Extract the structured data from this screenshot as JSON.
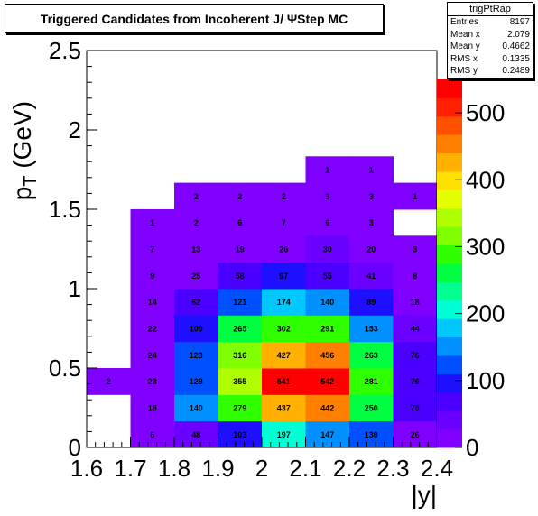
{
  "header": {
    "title": "Triggered Candidates from Incoherent J/    ΨStep MC"
  },
  "stats": {
    "name": "trigPtRap",
    "rows": [
      {
        "label": "Entries",
        "value": "8197"
      },
      {
        "label": "Mean x",
        "value": "2.079"
      },
      {
        "label": "Mean y",
        "value": "0.4662"
      },
      {
        "label": "RMS x",
        "value": "0.1335"
      },
      {
        "label": "RMS y",
        "value": "0.2489"
      }
    ]
  },
  "chart_data": {
    "type": "heatmap",
    "xlabel": "|y|",
    "ylabel": "p_T (GeV)",
    "xlim": [
      1.6,
      2.4
    ],
    "ylim": [
      0,
      2.5
    ],
    "x_bin_edges": [
      1.6,
      1.7,
      1.8,
      1.9,
      2.0,
      2.1,
      2.2,
      2.3,
      2.4
    ],
    "y_bin_width": 0.1667,
    "x_ticks": [
      "1.6",
      "1.7",
      "1.8",
      "1.9",
      "2",
      "2.1",
      "2.2",
      "2.3",
      "2.4"
    ],
    "y_ticks": [
      "0",
      "0.5",
      "1",
      "1.5",
      "2",
      "2.5"
    ],
    "z_ticks": [
      "0",
      "100",
      "200",
      "300",
      "400",
      "500"
    ],
    "zlim": [
      0,
      550
    ],
    "color_scale": [
      "#8000ff",
      "#6a00ff",
      "#4b00ff",
      "#1e10ff",
      "#0050ff",
      "#0090ff",
      "#00c8ff",
      "#00ffd5",
      "#00ff90",
      "#00ff40",
      "#30ff00",
      "#80ff00",
      "#b0ff00",
      "#e6ff00",
      "#ffe000",
      "#ffb000",
      "#ff8000",
      "#ff5000",
      "#ff2000",
      "#ff0000"
    ],
    "cells": [
      {
        "ix": 1,
        "iy": 0,
        "value": 6
      },
      {
        "ix": 2,
        "iy": 0,
        "value": 48
      },
      {
        "ix": 3,
        "iy": 0,
        "value": 103
      },
      {
        "ix": 4,
        "iy": 0,
        "value": 197
      },
      {
        "ix": 5,
        "iy": 0,
        "value": 147
      },
      {
        "ix": 6,
        "iy": 0,
        "value": 130
      },
      {
        "ix": 7,
        "iy": 0,
        "value": 26
      },
      {
        "ix": 1,
        "iy": 1,
        "value": 18
      },
      {
        "ix": 2,
        "iy": 1,
        "value": 140
      },
      {
        "ix": 3,
        "iy": 1,
        "value": 279
      },
      {
        "ix": 4,
        "iy": 1,
        "value": 437
      },
      {
        "ix": 5,
        "iy": 1,
        "value": 442
      },
      {
        "ix": 6,
        "iy": 1,
        "value": 250
      },
      {
        "ix": 7,
        "iy": 1,
        "value": 73
      },
      {
        "ix": 0,
        "iy": 2,
        "value": 2
      },
      {
        "ix": 1,
        "iy": 2,
        "value": 23
      },
      {
        "ix": 2,
        "iy": 2,
        "value": 128
      },
      {
        "ix": 3,
        "iy": 2,
        "value": 355
      },
      {
        "ix": 4,
        "iy": 2,
        "value": 541
      },
      {
        "ix": 5,
        "iy": 2,
        "value": 542
      },
      {
        "ix": 6,
        "iy": 2,
        "value": 281
      },
      {
        "ix": 7,
        "iy": 2,
        "value": 76
      },
      {
        "ix": 1,
        "iy": 3,
        "value": 24
      },
      {
        "ix": 2,
        "iy": 3,
        "value": 123
      },
      {
        "ix": 3,
        "iy": 3,
        "value": 316
      },
      {
        "ix": 4,
        "iy": 3,
        "value": 427
      },
      {
        "ix": 5,
        "iy": 3,
        "value": 456
      },
      {
        "ix": 6,
        "iy": 3,
        "value": 263
      },
      {
        "ix": 7,
        "iy": 3,
        "value": 76
      },
      {
        "ix": 1,
        "iy": 4,
        "value": 22
      },
      {
        "ix": 2,
        "iy": 4,
        "value": 109
      },
      {
        "ix": 3,
        "iy": 4,
        "value": 265
      },
      {
        "ix": 4,
        "iy": 4,
        "value": 302
      },
      {
        "ix": 5,
        "iy": 4,
        "value": 291
      },
      {
        "ix": 6,
        "iy": 4,
        "value": 153
      },
      {
        "ix": 7,
        "iy": 4,
        "value": 44
      },
      {
        "ix": 1,
        "iy": 5,
        "value": 14
      },
      {
        "ix": 2,
        "iy": 5,
        "value": 62
      },
      {
        "ix": 3,
        "iy": 5,
        "value": 121
      },
      {
        "ix": 4,
        "iy": 5,
        "value": 174
      },
      {
        "ix": 5,
        "iy": 5,
        "value": 140
      },
      {
        "ix": 6,
        "iy": 5,
        "value": 89
      },
      {
        "ix": 7,
        "iy": 5,
        "value": 18
      },
      {
        "ix": 1,
        "iy": 6,
        "value": 9
      },
      {
        "ix": 2,
        "iy": 6,
        "value": 25
      },
      {
        "ix": 3,
        "iy": 6,
        "value": 58
      },
      {
        "ix": 4,
        "iy": 6,
        "value": 97
      },
      {
        "ix": 5,
        "iy": 6,
        "value": 55
      },
      {
        "ix": 6,
        "iy": 6,
        "value": 41
      },
      {
        "ix": 7,
        "iy": 6,
        "value": 8
      },
      {
        "ix": 1,
        "iy": 7,
        "value": 7
      },
      {
        "ix": 2,
        "iy": 7,
        "value": 13
      },
      {
        "ix": 3,
        "iy": 7,
        "value": 19
      },
      {
        "ix": 4,
        "iy": 7,
        "value": 26
      },
      {
        "ix": 5,
        "iy": 7,
        "value": 30
      },
      {
        "ix": 6,
        "iy": 7,
        "value": 20
      },
      {
        "ix": 7,
        "iy": 7,
        "value": 3
      },
      {
        "ix": 1,
        "iy": 8,
        "value": 1
      },
      {
        "ix": 2,
        "iy": 8,
        "value": 2
      },
      {
        "ix": 3,
        "iy": 8,
        "value": 6
      },
      {
        "ix": 4,
        "iy": 8,
        "value": 7
      },
      {
        "ix": 5,
        "iy": 8,
        "value": 6
      },
      {
        "ix": 6,
        "iy": 8,
        "value": 3
      },
      {
        "ix": 2,
        "iy": 9,
        "value": 2
      },
      {
        "ix": 3,
        "iy": 9,
        "value": 2
      },
      {
        "ix": 4,
        "iy": 9,
        "value": 2
      },
      {
        "ix": 5,
        "iy": 9,
        "value": 3
      },
      {
        "ix": 6,
        "iy": 9,
        "value": 3
      },
      {
        "ix": 7,
        "iy": 9,
        "value": 1
      },
      {
        "ix": 5,
        "iy": 10,
        "value": 1
      },
      {
        "ix": 6,
        "iy": 10,
        "value": 1
      }
    ]
  }
}
